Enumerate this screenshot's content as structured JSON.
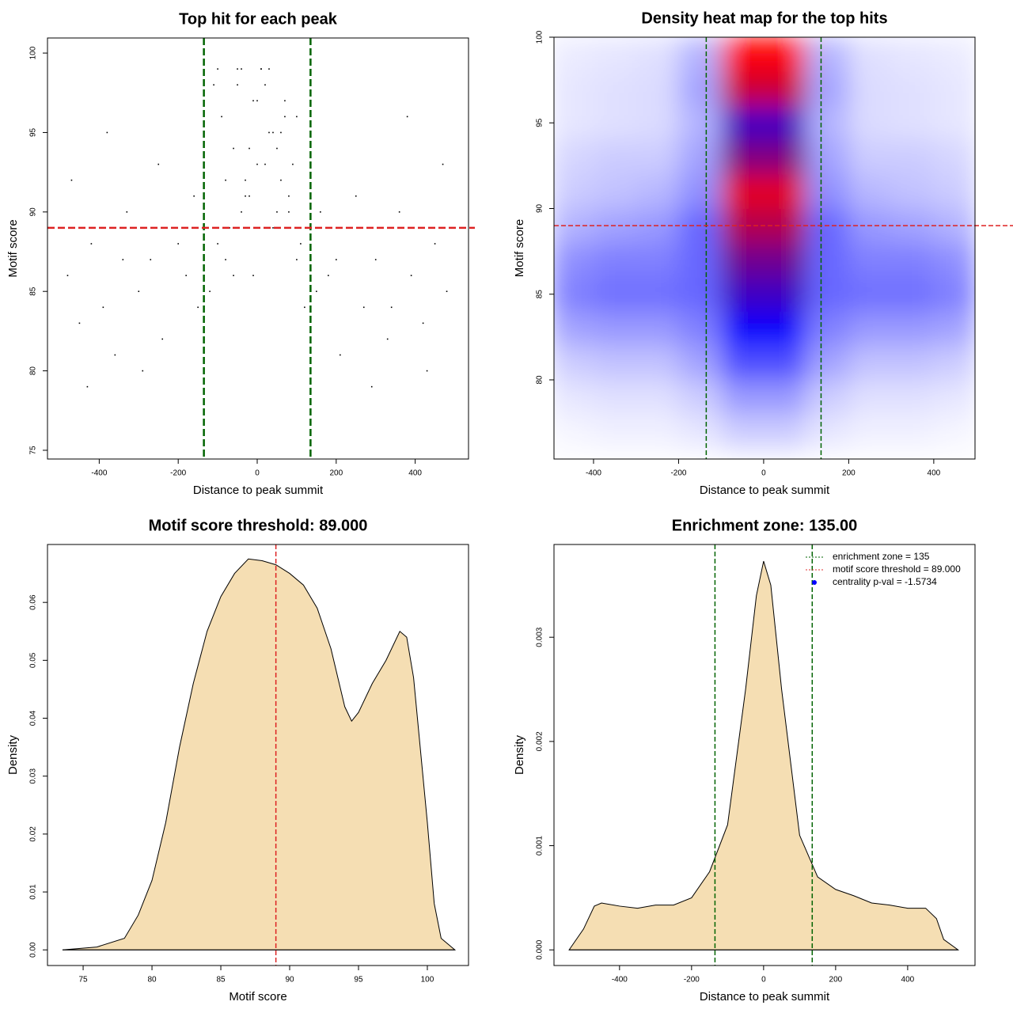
{
  "chart_data": [
    {
      "type": "scatter",
      "title": "Top hit for each peak",
      "xlabel": "Distance to peak summit",
      "ylabel": "Motif score",
      "x": [
        -480,
        -450,
        -420,
        -390,
        -360,
        -330,
        -300,
        -270,
        -240,
        -210,
        -180,
        -150,
        -470,
        -430,
        -380,
        -340,
        -290,
        -250,
        -200,
        -160,
        480,
        450,
        420,
        390,
        360,
        330,
        300,
        270,
        240,
        210,
        180,
        150,
        470,
        430,
        380,
        340,
        290,
        250,
        200,
        160,
        -120,
        -100,
        -80,
        -60,
        -40,
        -20,
        0,
        20,
        40,
        60,
        80,
        100,
        120,
        -110,
        -90,
        -70,
        -50,
        -30,
        -10,
        10,
        30,
        50,
        70,
        90,
        110,
        -100,
        -60,
        -20,
        20,
        60,
        100,
        -80,
        -40,
        0,
        40,
        80,
        -50,
        -10,
        30,
        70,
        -30,
        10,
        50
      ],
      "y": [
        86,
        83,
        88,
        84,
        81,
        90,
        85,
        87,
        82,
        89,
        86,
        84,
        92,
        79,
        95,
        87,
        80,
        93,
        88,
        91,
        85,
        88,
        83,
        86,
        90,
        82,
        87,
        84,
        89,
        81,
        86,
        85,
        93,
        80,
        96,
        84,
        79,
        91,
        87,
        90,
        85,
        88,
        92,
        86,
        90,
        94,
        97,
        93,
        89,
        95,
        91,
        87,
        84,
        98,
        96,
        89,
        99,
        92,
        86,
        99,
        95,
        90,
        97,
        93,
        88,
        99,
        94,
        91,
        98,
        92,
        96,
        87,
        99,
        93,
        95,
        90,
        98,
        97,
        99,
        96,
        91,
        99,
        94
      ],
      "color": "#000000",
      "xlim": [
        -531,
        535
      ],
      "ylim": [
        74.45,
        100.95
      ],
      "xticks": [
        -400,
        -200,
        0,
        200,
        400
      ],
      "yticks": [
        75,
        80,
        85,
        90,
        95,
        100
      ],
      "vlines": [
        -135,
        135
      ],
      "vline_color": "#006400",
      "hline": 89,
      "hline_color": "#dd2222"
    },
    {
      "type": "heatmap",
      "title": "Density heat map for the top hits",
      "xlabel": "Distance to peak summit",
      "ylabel": "Motif score",
      "x": [
        -450,
        -350,
        -250,
        -150,
        -50,
        50,
        150,
        250,
        350,
        450
      ],
      "y": [
        77,
        79,
        81,
        83,
        85,
        87,
        89,
        91,
        93,
        95,
        97,
        99
      ],
      "z": [
        [
          0.02,
          0.03,
          0.03,
          0.05,
          0.1,
          0.1,
          0.05,
          0.03,
          0.03,
          0.02
        ],
        [
          0.05,
          0.06,
          0.06,
          0.1,
          0.2,
          0.2,
          0.1,
          0.06,
          0.06,
          0.05
        ],
        [
          0.1,
          0.12,
          0.12,
          0.18,
          0.35,
          0.35,
          0.18,
          0.12,
          0.12,
          0.1
        ],
        [
          0.18,
          0.2,
          0.2,
          0.25,
          0.5,
          0.5,
          0.25,
          0.2,
          0.2,
          0.18
        ],
        [
          0.25,
          0.28,
          0.28,
          0.3,
          0.62,
          0.62,
          0.3,
          0.28,
          0.28,
          0.25
        ],
        [
          0.22,
          0.25,
          0.25,
          0.3,
          0.72,
          0.72,
          0.3,
          0.25,
          0.25,
          0.22
        ],
        [
          0.15,
          0.18,
          0.2,
          0.3,
          0.85,
          0.85,
          0.3,
          0.2,
          0.18,
          0.15
        ],
        [
          0.1,
          0.12,
          0.14,
          0.22,
          0.95,
          0.95,
          0.22,
          0.14,
          0.12,
          0.1
        ],
        [
          0.08,
          0.1,
          0.1,
          0.18,
          0.75,
          0.75,
          0.18,
          0.1,
          0.1,
          0.08
        ],
        [
          0.05,
          0.06,
          0.07,
          0.15,
          0.62,
          0.62,
          0.15,
          0.07,
          0.06,
          0.05
        ],
        [
          0.05,
          0.06,
          0.07,
          0.18,
          0.9,
          0.9,
          0.18,
          0.07,
          0.06,
          0.05
        ],
        [
          0.04,
          0.05,
          0.06,
          0.15,
          1.0,
          1.0,
          0.15,
          0.06,
          0.05,
          0.04
        ]
      ],
      "colors": [
        "#ffffff",
        "#0000ff",
        "#ff0000"
      ],
      "xlim": [
        -493,
        497
      ],
      "ylim": [
        75.38,
        100
      ],
      "xticks": [
        -400,
        -200,
        0,
        200,
        400
      ],
      "yticks": [
        80,
        85,
        90,
        95,
        100
      ],
      "vlines": [
        -135,
        135
      ],
      "vline_color": "#006400",
      "hline": 89,
      "hline_color": "#dd2222"
    },
    {
      "type": "area",
      "title": "Motif score threshold: 89.000",
      "xlabel": "Motif score",
      "ylabel": "Density",
      "x": [
        73.5,
        76,
        78,
        79,
        80,
        81,
        82,
        83,
        84,
        85,
        86,
        87,
        88,
        89,
        90,
        91,
        92,
        93,
        94,
        94.5,
        95,
        96,
        97,
        98,
        98.5,
        99,
        100,
        100.5,
        101,
        102
      ],
      "values": [
        0,
        0.0005,
        0.002,
        0.006,
        0.012,
        0.022,
        0.035,
        0.046,
        0.055,
        0.061,
        0.065,
        0.0675,
        0.0672,
        0.0665,
        0.065,
        0.063,
        0.059,
        0.052,
        0.042,
        0.0395,
        0.041,
        0.046,
        0.05,
        0.055,
        0.054,
        0.047,
        0.022,
        0.008,
        0.002,
        0
      ],
      "color": "#f5deb3",
      "xlim": [
        72.41,
        102.99
      ],
      "ylim": [
        -0.0027,
        0.07
      ],
      "xticks": [
        75,
        80,
        85,
        90,
        95,
        100
      ],
      "yticks": [
        {
          "value": 0,
          "label": "0.00"
        },
        {
          "value": 0.01,
          "label": "0.01"
        },
        {
          "value": 0.02,
          "label": "0.02"
        },
        {
          "value": 0.03,
          "label": "0.03"
        },
        {
          "value": 0.04,
          "label": "0.04"
        },
        {
          "value": 0.05,
          "label": "0.05"
        },
        {
          "value": 0.06,
          "label": "0.06"
        }
      ],
      "vlines": [
        89
      ],
      "vline_color": "#dd2222"
    },
    {
      "type": "area",
      "title": "Enrichment zone: 135.00",
      "xlabel": "Distance to peak summit",
      "ylabel": "Density",
      "x": [
        -540,
        -500,
        -470,
        -450,
        -400,
        -350,
        -300,
        -250,
        -200,
        -150,
        -100,
        -50,
        -20,
        0,
        20,
        50,
        100,
        150,
        200,
        250,
        300,
        350,
        400,
        450,
        480,
        500,
        540
      ],
      "values": [
        0,
        0.0002,
        0.00042,
        0.00045,
        0.00042,
        0.0004,
        0.00043,
        0.00043,
        0.0005,
        0.00075,
        0.0012,
        0.0025,
        0.0034,
        0.00373,
        0.0035,
        0.0025,
        0.0011,
        0.0007,
        0.00058,
        0.00052,
        0.00045,
        0.00043,
        0.0004,
        0.0004,
        0.0003,
        0.0001,
        0
      ],
      "color": "#f5deb3",
      "xlim": [
        -582,
        587
      ],
      "ylim": [
        -0.00015,
        0.00389
      ],
      "xticks": [
        -400,
        -200,
        0,
        200,
        400
      ],
      "yticks": [
        {
          "value": 0,
          "label": "0.000"
        },
        {
          "value": 0.001,
          "label": "0.001"
        },
        {
          "value": 0.002,
          "label": "0.002"
        },
        {
          "value": 0.003,
          "label": "0.003"
        }
      ],
      "vlines": [
        -135,
        135
      ],
      "vline_color": "#006400",
      "legend": [
        {
          "label": "enrichment zone = 135",
          "color": "#006400",
          "style": "dotted"
        },
        {
          "label": "motif score threshold = 89.000",
          "color": "#e03030",
          "style": "dotted"
        },
        {
          "label": "centrality p-val = -1.5734",
          "color": "#0000ff",
          "style": "point"
        }
      ]
    }
  ]
}
